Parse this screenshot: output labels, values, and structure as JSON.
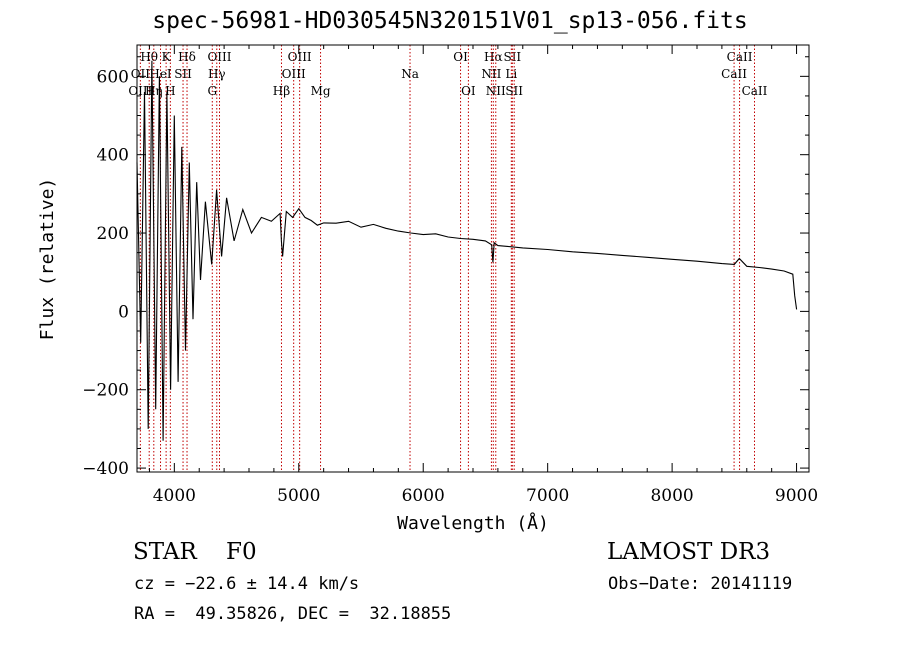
{
  "title": "spec-56981-HD030545N320151V01_sp13-056.fits",
  "info": {
    "object_type": "STAR    F0",
    "survey": "LAMOST DR3",
    "cz": "cz = −22.6 ± 14.4 km/s",
    "obs_date": "Obs−Date: 20141119",
    "ra_dec": "RA =  49.35826, DEC =  32.18855"
  },
  "chart_data": {
    "type": "line",
    "title": "spec-56981-HD030545N320151V01_sp13-056.fits",
    "xlabel": "Wavelength (Å)",
    "ylabel": "Flux (relative)",
    "xlim": [
      3700,
      9100
    ],
    "ylim": [
      -410,
      680
    ],
    "xticks": [
      4000,
      5000,
      6000,
      7000,
      8000,
      9000
    ],
    "yticks": [
      -400,
      -200,
      0,
      200,
      400,
      600
    ],
    "ytick_labels": [
      "−400",
      "−200",
      "0",
      "200",
      "400",
      "600"
    ],
    "series": [
      {
        "name": "flux",
        "x": [
          3700,
          3730,
          3760,
          3790,
          3820,
          3850,
          3880,
          3910,
          3940,
          3970,
          4000,
          4030,
          4060,
          4090,
          4120,
          4150,
          4180,
          4210,
          4250,
          4300,
          4340,
          4380,
          4420,
          4480,
          4550,
          4620,
          4700,
          4780,
          4850,
          4860,
          4870,
          4900,
          4950,
          5000,
          5050,
          5100,
          5150,
          5200,
          5300,
          5400,
          5500,
          5600,
          5700,
          5800,
          5900,
          6000,
          6100,
          6200,
          6300,
          6400,
          6500,
          6550,
          6560,
          6570,
          6600,
          6700,
          6800,
          7000,
          7200,
          7400,
          7600,
          7800,
          8000,
          8200,
          8400,
          8500,
          8540,
          8600,
          8700,
          8800,
          8900,
          8970,
          8985,
          9000
        ],
        "y": [
          380,
          -80,
          560,
          -300,
          640,
          -250,
          600,
          -330,
          560,
          -200,
          500,
          -180,
          420,
          -100,
          380,
          -20,
          330,
          80,
          280,
          120,
          310,
          140,
          290,
          180,
          260,
          200,
          240,
          230,
          250,
          180,
          140,
          255,
          240,
          262,
          240,
          232,
          220,
          226,
          225,
          230,
          215,
          222,
          212,
          205,
          200,
          196,
          198,
          190,
          186,
          184,
          180,
          170,
          125,
          175,
          168,
          165,
          162,
          158,
          152,
          148,
          143,
          138,
          133,
          128,
          122,
          120,
          135,
          115,
          112,
          108,
          103,
          95,
          40,
          5
        ]
      }
    ],
    "line_markers": [
      {
        "label": "Hθ",
        "wl": 3798,
        "row": 1
      },
      {
        "label": "OII",
        "wl": 3727,
        "row": 2
      },
      {
        "label": "OIII",
        "wl": 3727,
        "row": 3
      },
      {
        "label": "K",
        "wl": 3934,
        "row": 1
      },
      {
        "label": "HeI",
        "wl": 3889,
        "row": 2
      },
      {
        "label": "Hη",
        "wl": 3835,
        "row": 3
      },
      {
        "label": "H",
        "wl": 3968,
        "row": 3
      },
      {
        "label": "Hδ",
        "wl": 4102,
        "row": 1
      },
      {
        "label": "SII",
        "wl": 4070,
        "row": 2
      },
      {
        "label": "OIII",
        "wl": 4363,
        "row": 1
      },
      {
        "label": "Hγ",
        "wl": 4341,
        "row": 2
      },
      {
        "label": "G",
        "wl": 4305,
        "row": 3
      },
      {
        "label": "Hβ",
        "wl": 4861,
        "row": 3
      },
      {
        "label": "OIII",
        "wl": 5007,
        "row": 1
      },
      {
        "label": "OIII",
        "wl": 4959,
        "row": 2
      },
      {
        "label": "Mg",
        "wl": 5175,
        "row": 3
      },
      {
        "label": "Na",
        "wl": 5894,
        "row": 2
      },
      {
        "label": "OI",
        "wl": 6300,
        "row": 1
      },
      {
        "label": "OI",
        "wl": 6363,
        "row": 3
      },
      {
        "label": "Hα",
        "wl": 6563,
        "row": 1
      },
      {
        "label": "SII",
        "wl": 6716,
        "row": 1
      },
      {
        "label": "NII",
        "wl": 6548,
        "row": 2
      },
      {
        "label": "Li",
        "wl": 6708,
        "row": 2
      },
      {
        "label": "NII",
        "wl": 6583,
        "row": 3
      },
      {
        "label": "SII",
        "wl": 6731,
        "row": 3
      },
      {
        "label": "CaII",
        "wl": 8542,
        "row": 1
      },
      {
        "label": "CaII",
        "wl": 8498,
        "row": 2
      },
      {
        "label": "CaII",
        "wl": 8662,
        "row": 3
      }
    ]
  },
  "colors": {
    "spectrum": "#000000",
    "marker_line": "#c00000",
    "axis": "#000000",
    "background": "#ffffff"
  }
}
